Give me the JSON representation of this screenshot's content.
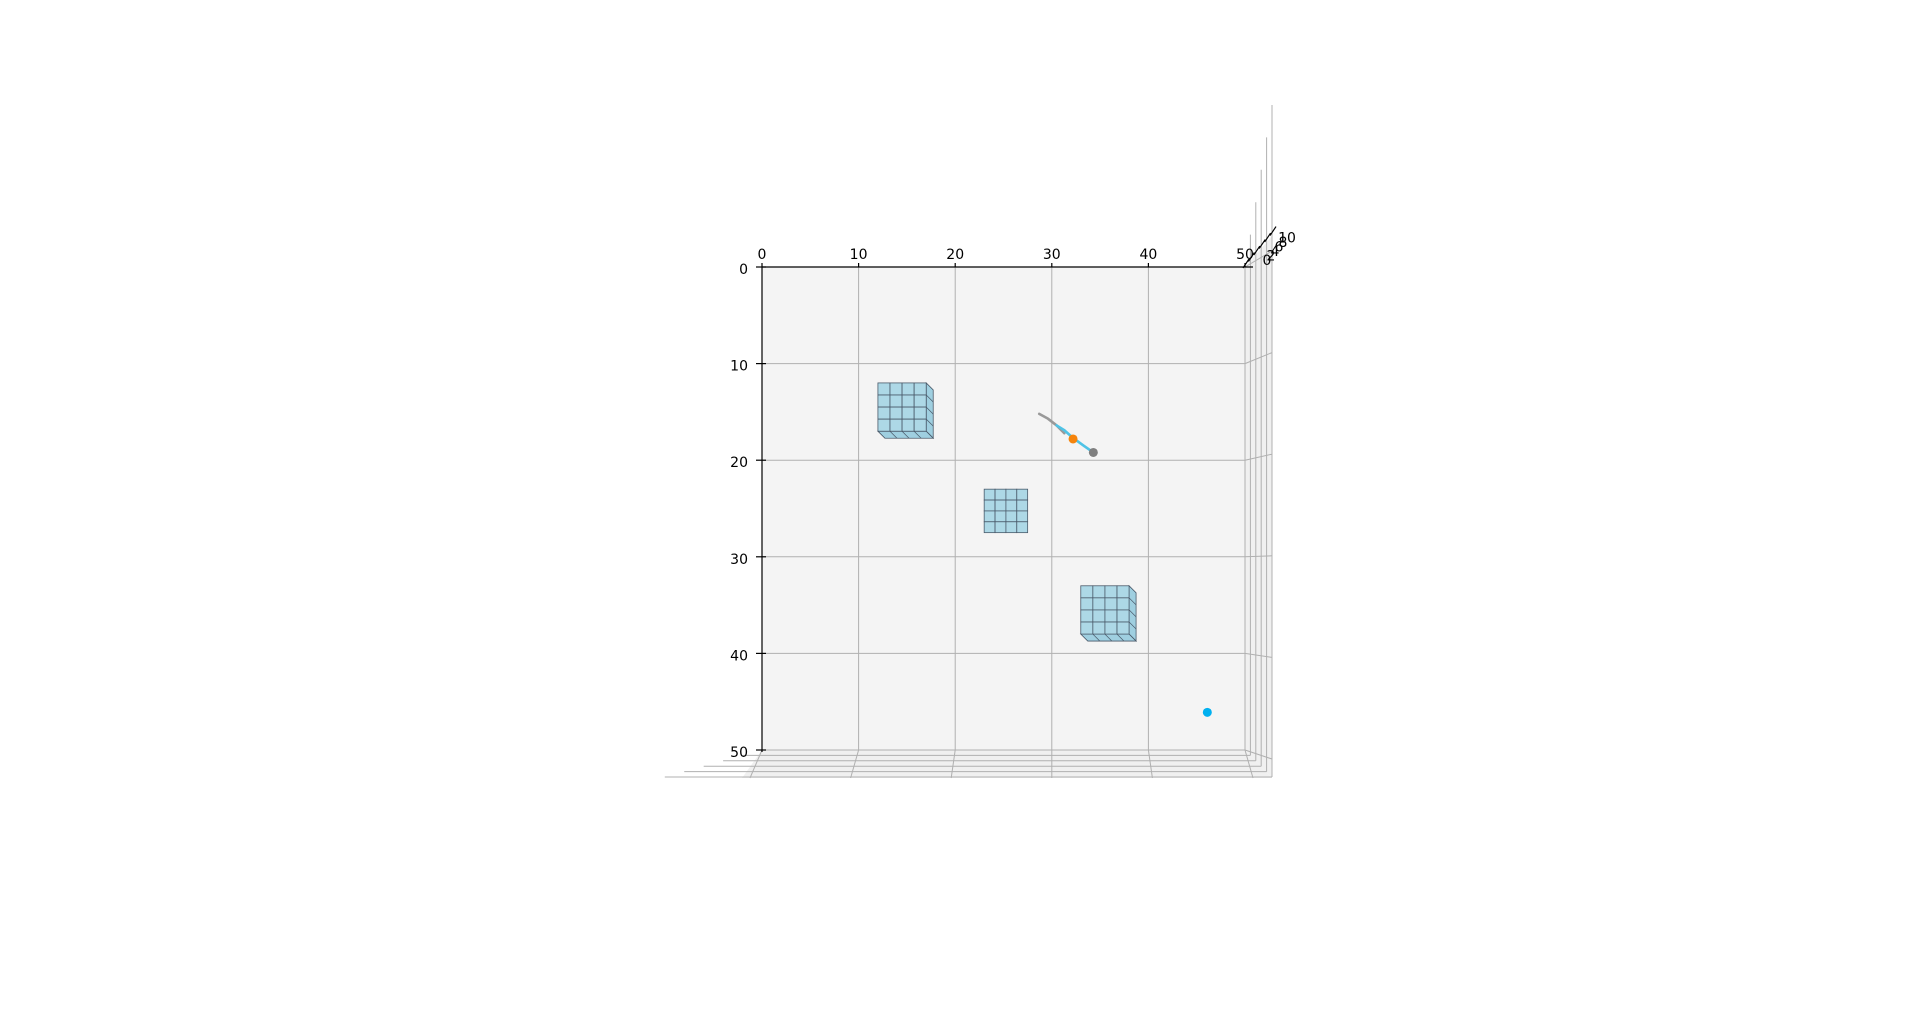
{
  "chart_data": {
    "type": "scatter",
    "projection": "3d",
    "view": "top-down",
    "title": "",
    "xlabel": "",
    "ylabel": "",
    "zlabel": "",
    "xlim": [
      0,
      50
    ],
    "ylim": [
      50,
      0
    ],
    "zlim": [
      0,
      10
    ],
    "x_ticks": [
      "0",
      "10",
      "20",
      "30",
      "40",
      "50"
    ],
    "y_ticks": [
      "0",
      "10",
      "20",
      "30",
      "40",
      "50"
    ],
    "z_ticks": [
      "0",
      "2",
      "4",
      "6",
      "8",
      "10"
    ],
    "grid": true,
    "obstacles": [
      {
        "x": [
          12,
          17
        ],
        "y": [
          12,
          17
        ],
        "cells": [
          4,
          4
        ],
        "color": "#add8e6"
      },
      {
        "x": [
          23,
          27.5
        ],
        "y": [
          23,
          27.5
        ],
        "cells": [
          4,
          4
        ],
        "color": "#add8e6"
      },
      {
        "x": [
          33,
          38
        ],
        "y": [
          33,
          38
        ],
        "cells": [
          4,
          4
        ],
        "color": "#add8e6"
      }
    ],
    "paths": [
      {
        "x": [
          28.7,
          29.6,
          30.5,
          31.3
        ],
        "y": [
          15.2,
          15.7,
          16.4,
          17.2
        ],
        "color": "#999999"
      },
      {
        "x": [
          30.5,
          31.3,
          32.2,
          33.3,
          34.3
        ],
        "y": [
          16.4,
          16.9,
          17.7,
          18.5,
          19.2
        ],
        "color": "#4fc3e6"
      }
    ],
    "points": [
      {
        "x": 32.2,
        "y": 17.8,
        "color": "#f5840c"
      },
      {
        "x": 34.3,
        "y": 19.2,
        "color": "#7f7f7f"
      },
      {
        "x": 46.1,
        "y": 46.1,
        "color": "#00b0f0"
      }
    ]
  }
}
